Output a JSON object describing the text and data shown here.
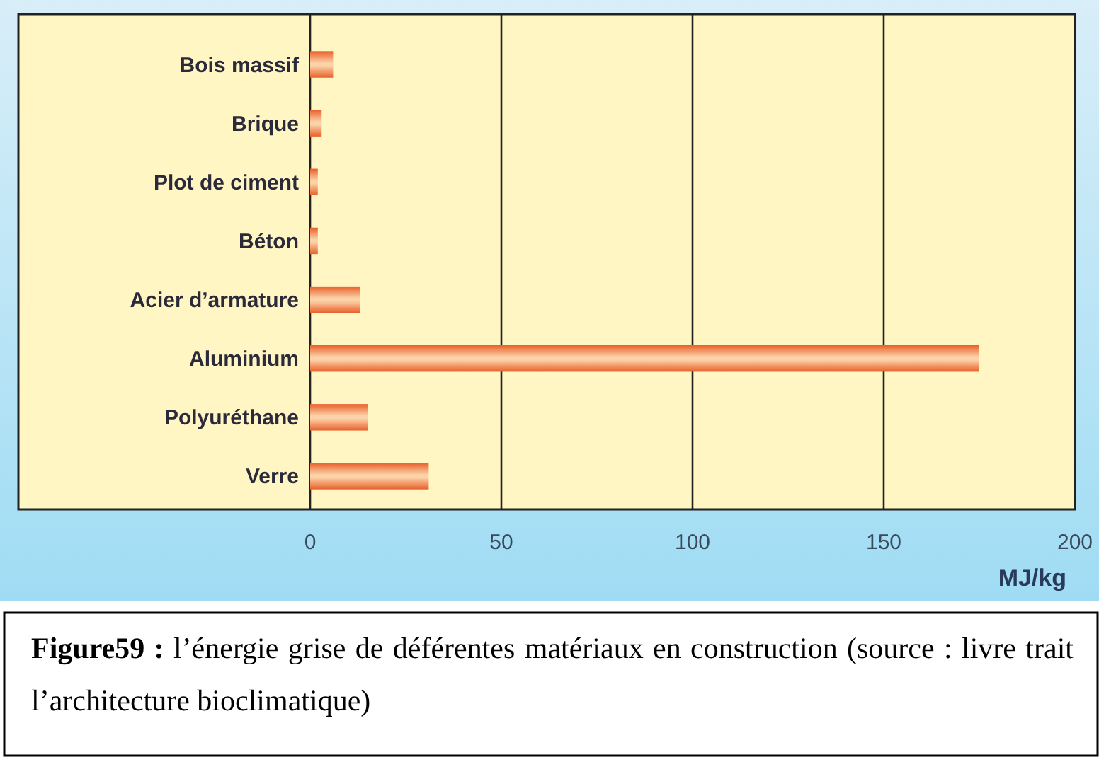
{
  "chart_data": {
    "type": "bar",
    "orientation": "horizontal",
    "title": "Figure59 :",
    "annotations": [
      "l’énergie grise de déférentes matériaux en construction (source : livre trait l’architecture bioclimatique)"
    ],
    "categories": [
      "Bois massif",
      "Brique",
      "Plot de ciment",
      "Béton",
      "Acier d’armature",
      "Aluminium",
      "Polyuréthane",
      "Verre"
    ],
    "values": [
      6,
      3,
      2,
      2,
      13,
      175,
      15,
      31
    ],
    "color": "#e8602a",
    "xlim": [
      0,
      200
    ],
    "xticks": [
      0,
      50,
      100,
      150,
      200
    ],
    "xlabel": "MJ/kg",
    "grid": "x"
  }
}
